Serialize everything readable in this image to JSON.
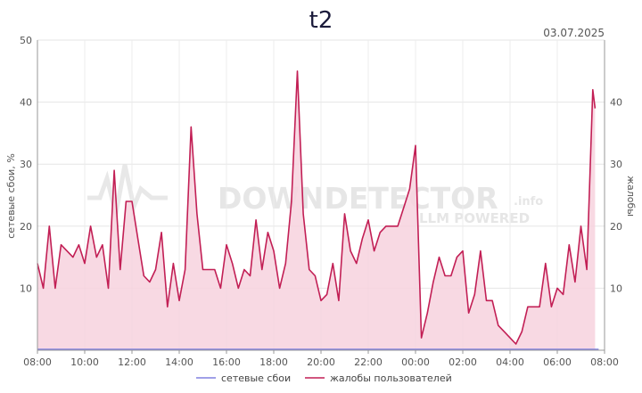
{
  "chart_data": {
    "type": "area",
    "title": "t2",
    "date": "03.07.2025",
    "ylabel_left": "сетевые сбои, %",
    "ylabel_right": "жалобы",
    "ylim": [
      0,
      50
    ],
    "y_ticks": [
      10,
      20,
      30,
      40,
      50
    ],
    "y_tick_labels_left": [
      "10",
      "20",
      "30",
      "40",
      "50"
    ],
    "y_tick_labels_right": [
      "10",
      "20",
      "30",
      "40"
    ],
    "x_tick_labels": [
      "08:00",
      "10:00",
      "12:00",
      "14:00",
      "16:00",
      "18:00",
      "20:00",
      "22:00",
      "00:00",
      "02:00",
      "04:00",
      "06:00",
      "08:00"
    ],
    "x_range_hours": [
      0,
      24
    ],
    "grid": true,
    "legend_position": "bottom",
    "watermark": {
      "main": "DOWNDETECTOR",
      "suffix": ".info",
      "sub": "LLM POWERED"
    },
    "series": [
      {
        "name": "сетевые сбои",
        "color": "#8080e0",
        "points": [
          [
            0,
            0
          ],
          [
            23.75,
            0
          ]
        ]
      },
      {
        "name": "жалобы пользователей",
        "color": "#c21f55",
        "fill": "#f7d2de",
        "points": [
          [
            0.0,
            14
          ],
          [
            0.25,
            10
          ],
          [
            0.5,
            20
          ],
          [
            0.75,
            10
          ],
          [
            1.0,
            17
          ],
          [
            1.25,
            16
          ],
          [
            1.5,
            15
          ],
          [
            1.75,
            17
          ],
          [
            2.0,
            14
          ],
          [
            2.25,
            20
          ],
          [
            2.5,
            15
          ],
          [
            2.75,
            17
          ],
          [
            3.0,
            10
          ],
          [
            3.25,
            29
          ],
          [
            3.5,
            13
          ],
          [
            3.75,
            24
          ],
          [
            4.0,
            24
          ],
          [
            4.25,
            18
          ],
          [
            4.5,
            12
          ],
          [
            4.75,
            11
          ],
          [
            5.0,
            13
          ],
          [
            5.25,
            19
          ],
          [
            5.5,
            7
          ],
          [
            5.75,
            14
          ],
          [
            6.0,
            8
          ],
          [
            6.25,
            13
          ],
          [
            6.5,
            36
          ],
          [
            6.75,
            22
          ],
          [
            7.0,
            13
          ],
          [
            7.25,
            13
          ],
          [
            7.5,
            13
          ],
          [
            7.75,
            10
          ],
          [
            8.0,
            17
          ],
          [
            8.25,
            14
          ],
          [
            8.5,
            10
          ],
          [
            8.75,
            13
          ],
          [
            9.0,
            12
          ],
          [
            9.25,
            21
          ],
          [
            9.5,
            13
          ],
          [
            9.75,
            19
          ],
          [
            10.0,
            16
          ],
          [
            10.25,
            10
          ],
          [
            10.5,
            14
          ],
          [
            10.75,
            24
          ],
          [
            11.0,
            45
          ],
          [
            11.25,
            22
          ],
          [
            11.5,
            13
          ],
          [
            11.75,
            12
          ],
          [
            12.0,
            8
          ],
          [
            12.25,
            9
          ],
          [
            12.5,
            14
          ],
          [
            12.75,
            8
          ],
          [
            13.0,
            22
          ],
          [
            13.25,
            16
          ],
          [
            13.5,
            14
          ],
          [
            13.75,
            18
          ],
          [
            14.0,
            21
          ],
          [
            14.25,
            16
          ],
          [
            14.5,
            19
          ],
          [
            14.75,
            20
          ],
          [
            15.0,
            20
          ],
          [
            15.25,
            20
          ],
          [
            15.5,
            23
          ],
          [
            15.75,
            26
          ],
          [
            16.0,
            33
          ],
          [
            16.25,
            2
          ],
          [
            16.5,
            6
          ],
          [
            16.75,
            11
          ],
          [
            17.0,
            15
          ],
          [
            17.25,
            12
          ],
          [
            17.5,
            12
          ],
          [
            17.75,
            15
          ],
          [
            18.0,
            16
          ],
          [
            18.25,
            6
          ],
          [
            18.5,
            9
          ],
          [
            18.75,
            16
          ],
          [
            19.0,
            8
          ],
          [
            19.25,
            8
          ],
          [
            19.5,
            4
          ],
          [
            19.75,
            3
          ],
          [
            20.0,
            2
          ],
          [
            20.25,
            1
          ],
          [
            20.5,
            3
          ],
          [
            20.75,
            7
          ],
          [
            21.0,
            7
          ],
          [
            21.25,
            7
          ],
          [
            21.5,
            14
          ],
          [
            21.75,
            7
          ],
          [
            22.0,
            10
          ],
          [
            22.25,
            9
          ],
          [
            22.5,
            17
          ],
          [
            22.75,
            11
          ],
          [
            23.0,
            20
          ],
          [
            23.25,
            13
          ],
          [
            23.5,
            42
          ],
          [
            23.6,
            39
          ]
        ]
      }
    ]
  }
}
